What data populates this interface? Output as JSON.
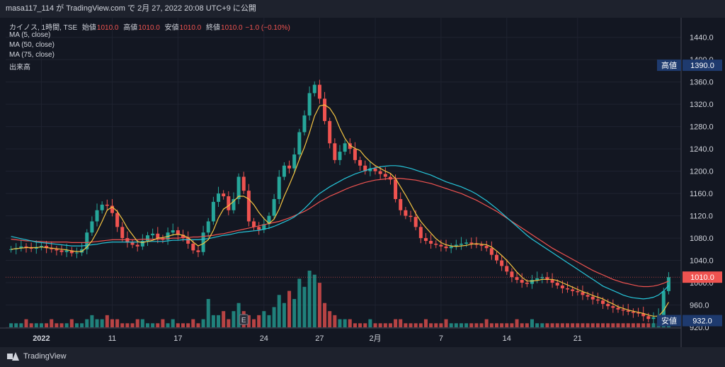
{
  "header": {
    "attribution": "masa117_114 が TradingView.com で 2月 27, 2022 20:08 UTC+9 に公開"
  },
  "legend": {
    "symbol": "カイノス, 1時間, TSE",
    "open_label": "始値",
    "open": "1010.0",
    "high_label": "高値",
    "high": "1010.0",
    "low_label": "安値",
    "low": "1010.0",
    "close_label": "終値",
    "close": "1010.0",
    "change": "−1.0 (−0.10%)",
    "ma5": "MA (5, close)",
    "ma50": "MA (50, close)",
    "ma75": "MA (75, close)",
    "volume": "出来高"
  },
  "footer": {
    "brand": "TradingView"
  },
  "colors": {
    "background": "#131722",
    "up": "#26a69a",
    "down": "#ef5350",
    "ma5": "#f5c542",
    "ma50": "#26c6da",
    "ma75": "#ef5350",
    "grid": "#1f2330",
    "axis_text": "#d1d4dc"
  },
  "chart_data": {
    "type": "candlestick",
    "ylim": [
      920,
      1460
    ],
    "y_ticks": [
      "1440.0",
      "1400.0",
      "1360.0",
      "1320.0",
      "1280.0",
      "1240.0",
      "1200.0",
      "1160.0",
      "1120.0",
      "1080.0",
      "1040.0",
      "1000.0",
      "960.0",
      "920.0"
    ],
    "x_ticks": [
      "2022",
      "11",
      "17",
      "24",
      "27",
      "2月",
      "7",
      "14",
      "21"
    ],
    "markers": {
      "high_label": "高値",
      "high_value": "1390.0",
      "low_label": "安値",
      "low_value": "932.0",
      "last_value": "1010.0"
    },
    "earnings_marker": "E",
    "grid": true,
    "close_series": [
      1060,
      1062,
      1065,
      1063,
      1061,
      1064,
      1066,
      1062,
      1060,
      1058,
      1055,
      1058,
      1053,
      1054,
      1060,
      1090,
      1110,
      1130,
      1140,
      1138,
      1125,
      1100,
      1080,
      1072,
      1068,
      1065,
      1075,
      1085,
      1088,
      1080,
      1077,
      1090,
      1094,
      1086,
      1080,
      1070,
      1058,
      1055,
      1090,
      1110,
      1145,
      1160,
      1155,
      1130,
      1150,
      1190,
      1165,
      1110,
      1100,
      1095,
      1105,
      1120,
      1150,
      1190,
      1210,
      1205,
      1230,
      1270,
      1300,
      1340,
      1355,
      1330,
      1290,
      1250,
      1220,
      1235,
      1250,
      1240,
      1220,
      1210,
      1200,
      1205,
      1200,
      1195,
      1190,
      1185,
      1150,
      1130,
      1120,
      1118,
      1100,
      1080,
      1075,
      1070,
      1068,
      1065,
      1062,
      1065,
      1068,
      1070,
      1072,
      1070,
      1068,
      1066,
      1062,
      1050,
      1040,
      1030,
      1020,
      1010,
      1005,
      1000,
      998,
      1005,
      1008,
      1010,
      1005,
      1000,
      995,
      990,
      988,
      985,
      983,
      978,
      975,
      970,
      968,
      962,
      958,
      955,
      952,
      950,
      948,
      946,
      945,
      940,
      935,
      938,
      942,
      985,
      1010
    ],
    "ma5": [
      1060,
      1061,
      1062,
      1063,
      1063,
      1063,
      1064,
      1063,
      1062,
      1061,
      1060,
      1059,
      1057,
      1056,
      1056,
      1064,
      1075,
      1091,
      1110,
      1130,
      1136,
      1128,
      1114,
      1098,
      1086,
      1074,
      1072,
      1074,
      1076,
      1080,
      1081,
      1083,
      1086,
      1087,
      1085,
      1081,
      1073,
      1066,
      1070,
      1077,
      1094,
      1116,
      1132,
      1138,
      1146,
      1155,
      1155,
      1150,
      1140,
      1126,
      1115,
      1106,
      1114,
      1132,
      1155,
      1175,
      1197,
      1221,
      1243,
      1269,
      1299,
      1317,
      1319,
      1313,
      1299,
      1277,
      1259,
      1246,
      1241,
      1237,
      1226,
      1217,
      1210,
      1205,
      1200,
      1196,
      1187,
      1172,
      1157,
      1141,
      1124,
      1110,
      1099,
      1089,
      1079,
      1072,
      1068,
      1066,
      1065,
      1066,
      1067,
      1069,
      1070,
      1069,
      1068,
      1064,
      1057,
      1049,
      1040,
      1030,
      1019,
      1010,
      1003,
      1003,
      1004,
      1006,
      1006,
      1006,
      1004,
      1000,
      996,
      992,
      988,
      984,
      981,
      977,
      974,
      971,
      966,
      962,
      957,
      954,
      951,
      949,
      947,
      945,
      942,
      940,
      940,
      950,
      965
    ],
    "ma50": [
      1083,
      1081,
      1079,
      1077,
      1075,
      1073,
      1072,
      1071,
      1070,
      1069,
      1068,
      1067,
      1066,
      1066,
      1066,
      1067,
      1068,
      1069,
      1071,
      1072,
      1073,
      1073,
      1073,
      1073,
      1073,
      1073,
      1073,
      1074,
      1074,
      1074,
      1074,
      1075,
      1076,
      1076,
      1077,
      1077,
      1077,
      1077,
      1078,
      1079,
      1081,
      1083,
      1085,
      1086,
      1088,
      1090,
      1091,
      1092,
      1093,
      1094,
      1096,
      1098,
      1101,
      1105,
      1109,
      1113,
      1118,
      1125,
      1133,
      1142,
      1152,
      1160,
      1166,
      1172,
      1177,
      1182,
      1187,
      1191,
      1195,
      1198,
      1201,
      1204,
      1206,
      1208,
      1209,
      1210,
      1210,
      1209,
      1207,
      1205,
      1202,
      1199,
      1196,
      1193,
      1189,
      1185,
      1181,
      1178,
      1175,
      1172,
      1168,
      1164,
      1159,
      1153,
      1147,
      1140,
      1133,
      1125,
      1117,
      1109,
      1101,
      1093,
      1085,
      1078,
      1072,
      1066,
      1060,
      1054,
      1048,
      1042,
      1036,
      1030,
      1024,
      1018,
      1012,
      1006,
      1000,
      994,
      990,
      986,
      982,
      978,
      975,
      973,
      972,
      971,
      972,
      974,
      978,
      985,
      995
    ],
    "ma75": [
      1078,
      1077,
      1076,
      1075,
      1075,
      1074,
      1074,
      1073,
      1073,
      1073,
      1073,
      1073,
      1072,
      1072,
      1072,
      1072,
      1073,
      1074,
      1075,
      1076,
      1077,
      1077,
      1077,
      1077,
      1077,
      1077,
      1078,
      1078,
      1078,
      1078,
      1079,
      1079,
      1080,
      1080,
      1081,
      1081,
      1082,
      1082,
      1083,
      1084,
      1085,
      1087,
      1088,
      1090,
      1092,
      1094,
      1096,
      1098,
      1100,
      1102,
      1104,
      1106,
      1108,
      1110,
      1113,
      1116,
      1120,
      1124,
      1128,
      1133,
      1139,
      1145,
      1150,
      1155,
      1159,
      1163,
      1167,
      1171,
      1174,
      1177,
      1180,
      1182,
      1184,
      1185,
      1186,
      1187,
      1187,
      1187,
      1186,
      1185,
      1184,
      1182,
      1180,
      1178,
      1175,
      1172,
      1169,
      1166,
      1163,
      1160,
      1156,
      1152,
      1148,
      1143,
      1138,
      1133,
      1128,
      1122,
      1116,
      1110,
      1104,
      1098,
      1092,
      1086,
      1080,
      1074,
      1068,
      1062,
      1057,
      1052,
      1047,
      1042,
      1037,
      1032,
      1027,
      1022,
      1018,
      1014,
      1010,
      1006,
      1003,
      1000,
      998,
      996,
      994,
      993,
      993,
      994,
      996,
      999,
      1003
    ],
    "volume": [
      1,
      1,
      1,
      2,
      1,
      1,
      1,
      1,
      2,
      1,
      1,
      1,
      2,
      1,
      1,
      2,
      3,
      2,
      2,
      3,
      2,
      2,
      1,
      1,
      1,
      2,
      2,
      1,
      1,
      1,
      2,
      1,
      2,
      1,
      1,
      1,
      2,
      1,
      2,
      7,
      3,
      3,
      4,
      2,
      4,
      6,
      4,
      3,
      2,
      3,
      4,
      3,
      5,
      8,
      6,
      9,
      7,
      12,
      10,
      14,
      13,
      11,
      6,
      4,
      3,
      2,
      2,
      2,
      1,
      1,
      1,
      2,
      1,
      1,
      1,
      1,
      2,
      2,
      1,
      1,
      1,
      1,
      2,
      1,
      1,
      1,
      2,
      1,
      1,
      1,
      1,
      1,
      1,
      1,
      2,
      1,
      1,
      1,
      1,
      1,
      2,
      1,
      1,
      2,
      1,
      1,
      1,
      1,
      1,
      1,
      1,
      1,
      1,
      1,
      1,
      1,
      1,
      1,
      1,
      1,
      1,
      1,
      1,
      1,
      1,
      1,
      1,
      1,
      1,
      4,
      1
    ]
  }
}
